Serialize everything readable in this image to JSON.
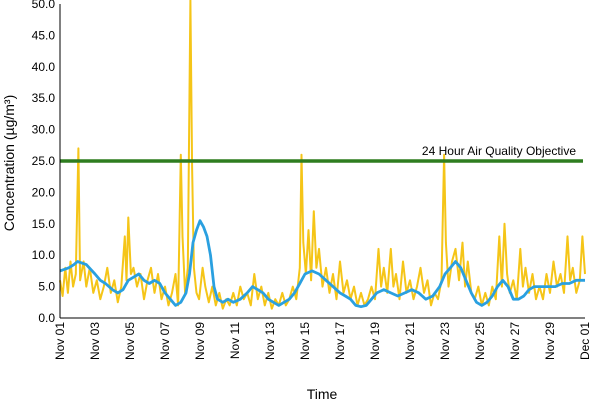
{
  "chart_data": {
    "type": "line",
    "xlabel": "Time",
    "ylabel": "Concentration (µg/m³)",
    "ylim": [
      0,
      50
    ],
    "yticks": [
      "0.0",
      "5.0",
      "10.0",
      "15.0",
      "20.0",
      "25.0",
      "30.0",
      "35.0",
      "40.0",
      "45.0",
      "50.0"
    ],
    "xticks": [
      {
        "label": "Nov 01",
        "day": 0
      },
      {
        "label": "Nov 03",
        "day": 2
      },
      {
        "label": "Nov 05",
        "day": 4
      },
      {
        "label": "Nov 07",
        "day": 6
      },
      {
        "label": "Nov 09",
        "day": 8
      },
      {
        "label": "Nov 11",
        "day": 10
      },
      {
        "label": "Nov 13",
        "day": 12
      },
      {
        "label": "Nov 15",
        "day": 14
      },
      {
        "label": "Nov 17",
        "day": 16
      },
      {
        "label": "Nov 19",
        "day": 18
      },
      {
        "label": "Nov 21",
        "day": 20
      },
      {
        "label": "Nov 23",
        "day": 22
      },
      {
        "label": "Nov 25",
        "day": 24
      },
      {
        "label": "Nov 27",
        "day": 26
      },
      {
        "label": "Nov 29",
        "day": 28
      },
      {
        "label": "Dec 01",
        "day": 30
      }
    ],
    "grid": false,
    "objective": {
      "label": "24 Hour Air Quality Objective",
      "value": 25.0,
      "color": "#2e7d1f"
    },
    "series": [
      {
        "color": "#f5c518",
        "points": [
          [
            0.0,
            6
          ],
          [
            0.15,
            3.5
          ],
          [
            0.3,
            8
          ],
          [
            0.45,
            4
          ],
          [
            0.6,
            9
          ],
          [
            0.75,
            5
          ],
          [
            0.9,
            7
          ],
          [
            1.05,
            27
          ],
          [
            1.15,
            6
          ],
          [
            1.35,
            9
          ],
          [
            1.5,
            5
          ],
          [
            1.7,
            8
          ],
          [
            1.9,
            4
          ],
          [
            2.1,
            6
          ],
          [
            2.3,
            3
          ],
          [
            2.5,
            5
          ],
          [
            2.7,
            8
          ],
          [
            2.9,
            4
          ],
          [
            3.1,
            6
          ],
          [
            3.3,
            2.5
          ],
          [
            3.5,
            5
          ],
          [
            3.7,
            13
          ],
          [
            3.8,
            6
          ],
          [
            3.9,
            16
          ],
          [
            4.05,
            7
          ],
          [
            4.2,
            8
          ],
          [
            4.4,
            5
          ],
          [
            4.6,
            7
          ],
          [
            4.8,
            3
          ],
          [
            5.0,
            6
          ],
          [
            5.2,
            8
          ],
          [
            5.4,
            4
          ],
          [
            5.6,
            7
          ],
          [
            5.8,
            3
          ],
          [
            6.0,
            5
          ],
          [
            6.2,
            2
          ],
          [
            6.4,
            4
          ],
          [
            6.6,
            7
          ],
          [
            6.75,
            2
          ],
          [
            6.9,
            26
          ],
          [
            7.0,
            13
          ],
          [
            7.15,
            4
          ],
          [
            7.3,
            8
          ],
          [
            7.45,
            52
          ],
          [
            7.55,
            24
          ],
          [
            7.65,
            8
          ],
          [
            7.8,
            4
          ],
          [
            7.95,
            3
          ],
          [
            8.15,
            8
          ],
          [
            8.3,
            5
          ],
          [
            8.5,
            2.5
          ],
          [
            8.7,
            5
          ],
          [
            8.9,
            2
          ],
          [
            9.1,
            4
          ],
          [
            9.3,
            1.5
          ],
          [
            9.5,
            3
          ],
          [
            9.7,
            2
          ],
          [
            9.9,
            4
          ],
          [
            10.1,
            2
          ],
          [
            10.3,
            5
          ],
          [
            10.5,
            3
          ],
          [
            10.7,
            4
          ],
          [
            10.9,
            2
          ],
          [
            11.1,
            7
          ],
          [
            11.3,
            3
          ],
          [
            11.5,
            5
          ],
          [
            11.7,
            2
          ],
          [
            11.9,
            4
          ],
          [
            12.1,
            1.5
          ],
          [
            12.3,
            3
          ],
          [
            12.5,
            2
          ],
          [
            12.7,
            4
          ],
          [
            12.9,
            2
          ],
          [
            13.1,
            3
          ],
          [
            13.3,
            5
          ],
          [
            13.5,
            3
          ],
          [
            13.7,
            8
          ],
          [
            13.8,
            26
          ],
          [
            13.9,
            12
          ],
          [
            14.05,
            7
          ],
          [
            14.2,
            14
          ],
          [
            14.35,
            6
          ],
          [
            14.5,
            17
          ],
          [
            14.65,
            8
          ],
          [
            14.8,
            11
          ],
          [
            15.0,
            5
          ],
          [
            15.2,
            8
          ],
          [
            15.4,
            4
          ],
          [
            15.6,
            7
          ],
          [
            15.8,
            3
          ],
          [
            16.0,
            9
          ],
          [
            16.2,
            4
          ],
          [
            16.4,
            6
          ],
          [
            16.6,
            3
          ],
          [
            16.8,
            5
          ],
          [
            17.0,
            2
          ],
          [
            17.2,
            4
          ],
          [
            17.4,
            2
          ],
          [
            17.6,
            3
          ],
          [
            17.8,
            5
          ],
          [
            18.0,
            3
          ],
          [
            18.2,
            11
          ],
          [
            18.35,
            5
          ],
          [
            18.5,
            8
          ],
          [
            18.7,
            4
          ],
          [
            18.9,
            11
          ],
          [
            19.05,
            5
          ],
          [
            19.2,
            7
          ],
          [
            19.4,
            3
          ],
          [
            19.6,
            9
          ],
          [
            19.8,
            4
          ],
          [
            20.0,
            6
          ],
          [
            20.2,
            3
          ],
          [
            20.4,
            5
          ],
          [
            20.6,
            8
          ],
          [
            20.8,
            4
          ],
          [
            21.0,
            6
          ],
          [
            21.2,
            2
          ],
          [
            21.4,
            4
          ],
          [
            21.6,
            3
          ],
          [
            21.8,
            6
          ],
          [
            21.95,
            26
          ],
          [
            22.05,
            12
          ],
          [
            22.2,
            5
          ],
          [
            22.4,
            9
          ],
          [
            22.6,
            11
          ],
          [
            22.8,
            6
          ],
          [
            23.0,
            12
          ],
          [
            23.15,
            5
          ],
          [
            23.3,
            9
          ],
          [
            23.5,
            4
          ],
          [
            23.7,
            3
          ],
          [
            23.9,
            5
          ],
          [
            24.1,
            2
          ],
          [
            24.3,
            4
          ],
          [
            24.5,
            2
          ],
          [
            24.7,
            5
          ],
          [
            24.9,
            3
          ],
          [
            25.1,
            13
          ],
          [
            25.25,
            5
          ],
          [
            25.4,
            15
          ],
          [
            25.55,
            7
          ],
          [
            25.7,
            4
          ],
          [
            25.9,
            6
          ],
          [
            26.1,
            3
          ],
          [
            26.3,
            11
          ],
          [
            26.45,
            5
          ],
          [
            26.6,
            8
          ],
          [
            26.8,
            4
          ],
          [
            27.0,
            7
          ],
          [
            27.2,
            3
          ],
          [
            27.4,
            5
          ],
          [
            27.6,
            3
          ],
          [
            27.8,
            7
          ],
          [
            28.0,
            4
          ],
          [
            28.2,
            9
          ],
          [
            28.4,
            5
          ],
          [
            28.6,
            7
          ],
          [
            28.8,
            4
          ],
          [
            29.0,
            13
          ],
          [
            29.15,
            6
          ],
          [
            29.3,
            8
          ],
          [
            29.5,
            4
          ],
          [
            29.7,
            6
          ],
          [
            29.85,
            13
          ],
          [
            30.0,
            7
          ]
        ]
      },
      {
        "color": "#2aa0e0",
        "points": [
          [
            0.0,
            7.5
          ],
          [
            0.5,
            8
          ],
          [
            0.8,
            8.5
          ],
          [
            1.0,
            9
          ],
          [
            1.5,
            8.5
          ],
          [
            2.0,
            7
          ],
          [
            2.3,
            6
          ],
          [
            2.6,
            5.5
          ],
          [
            3.0,
            4.5
          ],
          [
            3.3,
            4
          ],
          [
            3.6,
            4.5
          ],
          [
            3.9,
            6
          ],
          [
            4.2,
            6.5
          ],
          [
            4.5,
            7
          ],
          [
            4.8,
            6
          ],
          [
            5.1,
            5.5
          ],
          [
            5.4,
            6
          ],
          [
            5.7,
            5.5
          ],
          [
            6.0,
            4
          ],
          [
            6.3,
            3
          ],
          [
            6.6,
            2
          ],
          [
            6.9,
            2.5
          ],
          [
            7.2,
            4
          ],
          [
            7.4,
            7
          ],
          [
            7.6,
            12
          ],
          [
            7.8,
            14
          ],
          [
            8.0,
            15.5
          ],
          [
            8.2,
            14.5
          ],
          [
            8.4,
            13
          ],
          [
            8.6,
            10
          ],
          [
            8.8,
            5
          ],
          [
            9.0,
            3
          ],
          [
            9.3,
            2.5
          ],
          [
            9.6,
            3
          ],
          [
            9.9,
            2.5
          ],
          [
            10.3,
            3
          ],
          [
            10.7,
            4
          ],
          [
            11.0,
            5
          ],
          [
            11.3,
            4.5
          ],
          [
            11.6,
            4
          ],
          [
            11.9,
            3
          ],
          [
            12.2,
            2.5
          ],
          [
            12.5,
            2
          ],
          [
            12.8,
            2.5
          ],
          [
            13.1,
            3
          ],
          [
            13.4,
            4
          ],
          [
            13.7,
            5.5
          ],
          [
            14.0,
            7
          ],
          [
            14.4,
            7.5
          ],
          [
            14.8,
            7
          ],
          [
            15.2,
            6
          ],
          [
            15.6,
            5
          ],
          [
            16.0,
            4
          ],
          [
            16.3,
            3.5
          ],
          [
            16.6,
            3
          ],
          [
            16.9,
            2
          ],
          [
            17.2,
            1.8
          ],
          [
            17.5,
            2
          ],
          [
            17.8,
            3
          ],
          [
            18.1,
            4
          ],
          [
            18.5,
            4.5
          ],
          [
            18.9,
            4
          ],
          [
            19.3,
            3.5
          ],
          [
            19.7,
            4
          ],
          [
            20.1,
            4.5
          ],
          [
            20.5,
            4
          ],
          [
            20.9,
            3
          ],
          [
            21.3,
            3.5
          ],
          [
            21.7,
            5
          ],
          [
            22.0,
            7
          ],
          [
            22.3,
            8
          ],
          [
            22.6,
            9
          ],
          [
            22.9,
            8
          ],
          [
            23.2,
            6
          ],
          [
            23.5,
            4
          ],
          [
            23.8,
            2.5
          ],
          [
            24.1,
            2
          ],
          [
            24.4,
            2.5
          ],
          [
            24.7,
            3.5
          ],
          [
            25.0,
            5
          ],
          [
            25.3,
            6
          ],
          [
            25.6,
            5
          ],
          [
            25.9,
            3
          ],
          [
            26.2,
            3
          ],
          [
            26.5,
            3.5
          ],
          [
            26.8,
            4.5
          ],
          [
            27.1,
            5
          ],
          [
            27.5,
            5
          ],
          [
            27.9,
            5
          ],
          [
            28.3,
            5
          ],
          [
            28.7,
            5.5
          ],
          [
            29.1,
            5.5
          ],
          [
            29.5,
            6
          ],
          [
            29.8,
            6
          ],
          [
            30.0,
            6
          ]
        ]
      }
    ]
  }
}
